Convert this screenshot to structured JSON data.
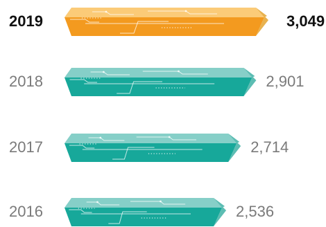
{
  "chart_data": {
    "type": "bar",
    "orientation": "horizontal",
    "categories": [
      "2019",
      "2018",
      "2017",
      "2016"
    ],
    "values": [
      3049,
      2901,
      2714,
      2536
    ],
    "value_labels": [
      "3,049",
      "2,901",
      "2,714",
      "2,536"
    ],
    "highlight": "2019",
    "title": "",
    "xlabel": "",
    "ylabel": "",
    "colors": {
      "highlight_front": "#F39A1F",
      "highlight_top": "#FBCB78",
      "highlight_side": "#E8B24F",
      "normal_front": "#17A89A",
      "normal_top": "#86CFC8",
      "normal_side": "#5CBDB3"
    }
  }
}
